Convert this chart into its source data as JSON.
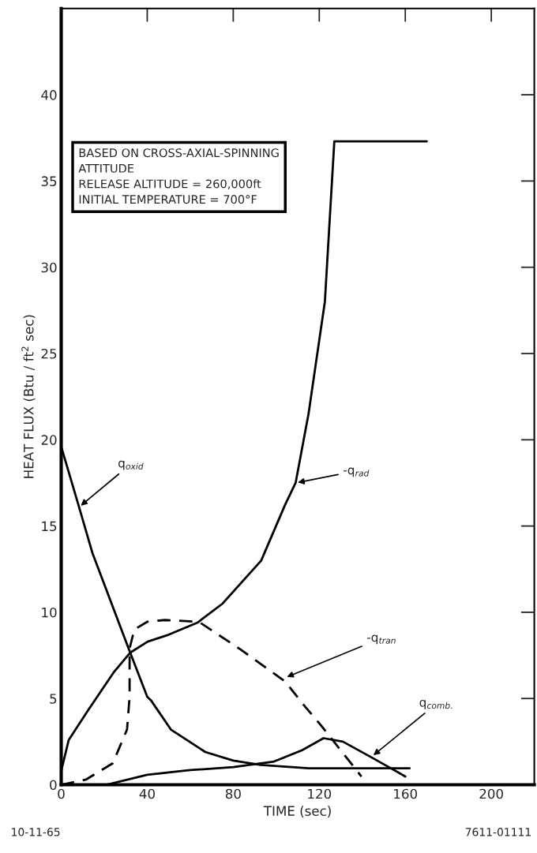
{
  "chart_data": {
    "type": "line",
    "xlabel": "TIME (sec)",
    "ylabel": "HEAT FLUX (Btu / ft$^{2}$ sec)",
    "xlim": [
      0,
      220
    ],
    "xticks": [
      0,
      40,
      80,
      120,
      160,
      200
    ],
    "ylim": [
      0,
      45
    ],
    "yticks": [
      0,
      5,
      10,
      15,
      20,
      25,
      30,
      35,
      40
    ],
    "grid": false,
    "legend": false,
    "marker": "none",
    "series": [
      {
        "color": "#000000",
        "line_style": "solid",
        "x": [
          0,
          3.5,
          12.4,
          24.3,
          32,
          40.2,
          50,
          63.4,
          75,
          93,
          104,
          109,
          115,
          122.6,
          127,
          170
        ],
        "values": [
          0.8,
          2.6,
          4.3,
          6.5,
          7.65,
          8.3,
          8.7,
          9.4,
          10.5,
          13,
          16.2,
          17.5,
          21.5,
          28,
          37.3,
          37.3
        ]
      },
      {
        "color": "#000000",
        "line_style": "solid",
        "x": [
          0,
          8.3,
          14.6,
          31.5,
          40,
          41.7,
          51,
          67,
          80,
          92.7,
          115,
          162
        ],
        "values": [
          19.6,
          16.1,
          13.4,
          7.85,
          5.1,
          4.9,
          3.2,
          1.9,
          1.4,
          1.15,
          0.96,
          0.96
        ]
      },
      {
        "color": "#000000",
        "line_style": "dashed",
        "x": [
          0,
          11.5,
          24,
          30.6,
          31.8,
          31.8,
          34,
          40,
          48.2,
          64,
          83.3,
          104,
          113.6,
          121.3,
          139.6
        ],
        "values": [
          0,
          0.3,
          1.25,
          3.2,
          5.1,
          7.9,
          9.0,
          9.45,
          9.55,
          9.45,
          7.85,
          6.0,
          4.5,
          3.37,
          0.48
        ]
      },
      {
        "color": "#000000",
        "line_style": "solid",
        "x": [
          21,
          40,
          60,
          80,
          99,
          112,
          122,
          131,
          145,
          160
        ],
        "values": [
          0,
          0.58,
          0.85,
          1.02,
          1.35,
          2.0,
          2.7,
          2.5,
          1.54,
          0.48
        ]
      }
    ],
    "annotations": [
      {
        "text": "q$_{oxid}$",
        "x": 8.3,
        "y": 16.1
      },
      {
        "text": "-q$_{rad}$",
        "x": 109,
        "y": 17.5
      },
      {
        "text": "-q$_{tran}$",
        "x": 104,
        "y": 6.2
      },
      {
        "text": "q$_{comb.}$",
        "x": 144.4,
        "y": 1.63
      },
      "BASED ON CROSS-AXIAL-SPINNING\nATTITUDE",
      "RELEASE ALTITUDE = 260,000ft",
      "INITIAL TEMPERATURE = 700°F",
      "10-11-65",
      "7611-01111"
    ]
  }
}
